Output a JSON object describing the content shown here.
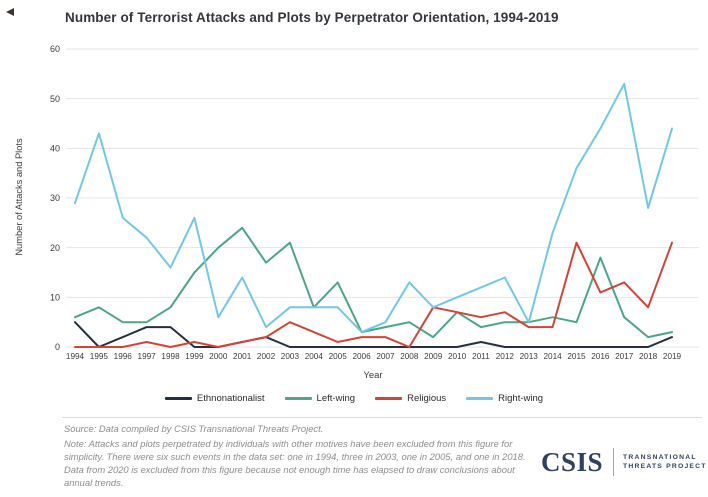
{
  "title": "Number of Terrorist Attacks and Plots by Perpetrator Orientation, 1994-2019",
  "chart_data": {
    "type": "line",
    "x": [
      1994,
      1995,
      1996,
      1997,
      1998,
      1999,
      2000,
      2001,
      2002,
      2003,
      2004,
      2005,
      2006,
      2007,
      2008,
      2009,
      2010,
      2011,
      2012,
      2013,
      2014,
      2015,
      2016,
      2017,
      2018,
      2019
    ],
    "series": [
      {
        "name": "Ethnonationalist",
        "color": "#25303f",
        "values": [
          5,
          0,
          2,
          4,
          4,
          0,
          0,
          1,
          2,
          0,
          0,
          0,
          0,
          0,
          0,
          0,
          0,
          1,
          0,
          0,
          0,
          0,
          0,
          0,
          0,
          2
        ]
      },
      {
        "name": "Left-wing",
        "color": "#4ba687",
        "values": [
          6,
          8,
          5,
          5,
          8,
          15,
          20,
          24,
          17,
          21,
          8,
          13,
          3,
          4,
          5,
          2,
          7,
          4,
          5,
          5,
          6,
          5,
          18,
          6,
          2,
          3
        ]
      },
      {
        "name": "Religious",
        "color": "#d44338",
        "values": [
          0,
          0,
          0,
          1,
          0,
          1,
          0,
          1,
          2,
          5,
          3,
          1,
          2,
          2,
          0,
          8,
          7,
          6,
          7,
          4,
          4,
          21,
          11,
          13,
          8,
          21
        ]
      },
      {
        "name": "Right-wing",
        "color": "#72c7e9",
        "values": [
          29,
          43,
          26,
          22,
          16,
          26,
          6,
          14,
          4,
          8,
          8,
          8,
          3,
          5,
          13,
          8,
          10,
          12,
          14,
          5,
          23,
          36,
          44,
          53,
          28,
          44
        ]
      }
    ],
    "xlabel": "Year",
    "ylabel": "Number of Attacks and Plots",
    "ylim": [
      0,
      60
    ],
    "yticks": [
      0,
      10,
      20,
      30,
      40,
      50,
      60
    ],
    "grid": "horizontal",
    "legend_position": "bottom"
  },
  "footer": {
    "source": "Source: Data compiled by CSIS Transnational Threats Project.",
    "note": "Note: Attacks and plots perpetrated by individuals with other motives have been excluded from this figure for simplicity. There were six such events in the data set: one in 1994, three in 2003, one in 2005, and one in 2018. Data from 2020 is excluded from this figure because not enough time has elapsed to draw conclusions about annual trends.",
    "logo": {
      "acronym": "CSIS",
      "program_line1": "TRANSNATIONAL",
      "program_line2": "THREATS PROJECT"
    }
  },
  "style": {
    "tick_color": "#3c3c3c",
    "grid_color": "#e5e5e5",
    "title_color": "#33363c",
    "note_color": "#8d8d8d",
    "logo_color": "#30405f"
  }
}
